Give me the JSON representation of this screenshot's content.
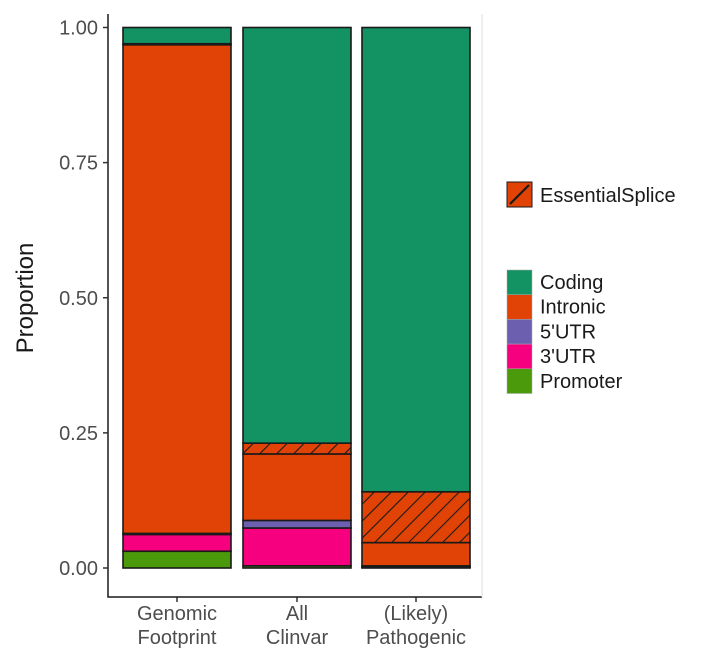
{
  "chart_data": {
    "type": "bar",
    "stacked": true,
    "ylabel": "Proportion",
    "xlabel": "",
    "ylim": [
      0,
      1
    ],
    "yticks": [
      "0.00",
      "0.25",
      "0.50",
      "0.75",
      "1.00"
    ],
    "ytick_values": [
      0,
      0.25,
      0.5,
      0.75,
      1
    ],
    "grid": false,
    "legend_placement": "right",
    "categories": [
      [
        "Genomic",
        "Footprint"
      ],
      [
        "All",
        "Clinvar"
      ],
      [
        "(Likely)",
        "Pathogenic"
      ]
    ],
    "series": [
      {
        "name": "Promoter",
        "color": "#4a9a0c",
        "values": [
          0.031,
          0.004,
          0.001
        ]
      },
      {
        "name": "3'UTR",
        "color": "#f7007f",
        "values": [
          0.031,
          0.07,
          0.002
        ]
      },
      {
        "name": "5'UTR",
        "color": "#6d5fb0",
        "values": [
          0.002,
          0.014,
          0.001
        ]
      },
      {
        "name": "Intronic",
        "color": "#e04305",
        "values": [
          0.904,
          0.123,
          0.043
        ]
      },
      {
        "name": "EssentialSplice",
        "color": "#e04305",
        "hatched": true,
        "values": [
          0.002,
          0.02,
          0.094
        ]
      },
      {
        "name": "Coding",
        "color": "#139363",
        "values": [
          0.03,
          0.769,
          0.859
        ]
      }
    ],
    "legend": {
      "hatch_entry": "EssentialSplice",
      "fill_entries": [
        "Coding",
        "Intronic",
        "5'UTR",
        "3'UTR",
        "Promoter"
      ]
    }
  }
}
